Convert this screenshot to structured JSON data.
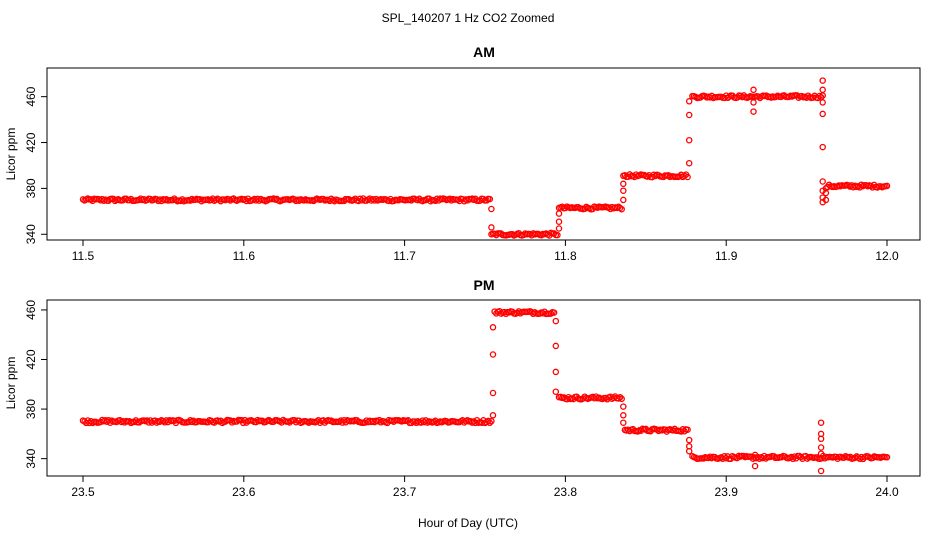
{
  "figure": {
    "main_title": "SPL_140207  1 Hz CO2 Zoomed",
    "xlabel": "Hour of Day (UTC)"
  },
  "colors": {
    "points": "#ff0000",
    "axes": "#000000"
  },
  "chart_data": [
    {
      "type": "scatter",
      "title": "AM",
      "ylabel": "Licor ppm",
      "xlim": [
        11.5,
        12.0
      ],
      "ylim": [
        335,
        485
      ],
      "x_ticks": [
        11.5,
        11.6,
        11.7,
        11.8,
        11.9,
        12.0
      ],
      "x_tick_labels": [
        "11.5",
        "11.6",
        "11.7",
        "11.8",
        "11.9",
        "12.0"
      ],
      "y_ticks": [
        340,
        380,
        420,
        460
      ],
      "y_tick_labels": [
        "340",
        "380",
        "420",
        "460"
      ],
      "marker": "open-circle",
      "segments": [
        {
          "x_start": 11.5,
          "x_end": 11.753,
          "y": 370
        },
        {
          "x_start": 11.755,
          "x_end": 11.795,
          "y": 340
        },
        {
          "x_start": 11.797,
          "x_end": 11.835,
          "y": 363
        },
        {
          "x_start": 11.837,
          "x_end": 11.876,
          "y": 391
        },
        {
          "x_start": 11.879,
          "x_end": 11.96,
          "y": 460
        },
        {
          "x_start": 11.963,
          "x_end": 12.0,
          "y": 382
        }
      ],
      "transitions": [
        {
          "x": 11.754,
          "y": [
            362,
            346,
            340
          ]
        },
        {
          "x": 11.796,
          "y": [
            345,
            351,
            358,
            363
          ]
        },
        {
          "x": 11.836,
          "y": [
            370,
            378,
            384,
            391
          ]
        },
        {
          "x": 11.877,
          "y": [
            402,
            422,
            444,
            456
          ]
        },
        {
          "x": 11.917,
          "y": [
            466,
            455,
            447
          ]
        },
        {
          "x": 11.96,
          "y": [
            474,
            466,
            455,
            445,
            416,
            386,
            378,
            372,
            368
          ]
        },
        {
          "x": 11.962,
          "y": [
            370,
            376,
            380
          ]
        }
      ]
    },
    {
      "type": "scatter",
      "title": "PM",
      "ylabel": "Licor ppm",
      "xlim": [
        23.5,
        24.0
      ],
      "ylim": [
        326,
        468
      ],
      "x_ticks": [
        23.5,
        23.6,
        23.7,
        23.8,
        23.9,
        24.0
      ],
      "x_tick_labels": [
        "23.5",
        "23.6",
        "23.7",
        "23.8",
        "23.9",
        "24.0"
      ],
      "y_ticks": [
        340,
        380,
        420,
        460
      ],
      "y_tick_labels": [
        "340",
        "380",
        "420",
        "460"
      ],
      "marker": "open-circle",
      "segments": [
        {
          "x_start": 23.5,
          "x_end": 23.754,
          "y": 370
        },
        {
          "x_start": 23.756,
          "x_end": 23.793,
          "y": 458
        },
        {
          "x_start": 23.796,
          "x_end": 23.835,
          "y": 389
        },
        {
          "x_start": 23.837,
          "x_end": 23.876,
          "y": 363
        },
        {
          "x_start": 23.879,
          "x_end": 24.0,
          "y": 341
        }
      ],
      "transitions": [
        {
          "x": 23.755,
          "y": [
            375,
            393,
            424,
            446
          ]
        },
        {
          "x": 23.794,
          "y": [
            451,
            431,
            410,
            394
          ]
        },
        {
          "x": 23.836,
          "y": [
            382,
            375,
            369
          ]
        },
        {
          "x": 23.877,
          "y": [
            355,
            350,
            346
          ]
        },
        {
          "x": 23.918,
          "y": [
            343,
            334
          ]
        },
        {
          "x": 23.959,
          "y": [
            369,
            360,
            356,
            349,
            344,
            330
          ]
        }
      ]
    }
  ]
}
